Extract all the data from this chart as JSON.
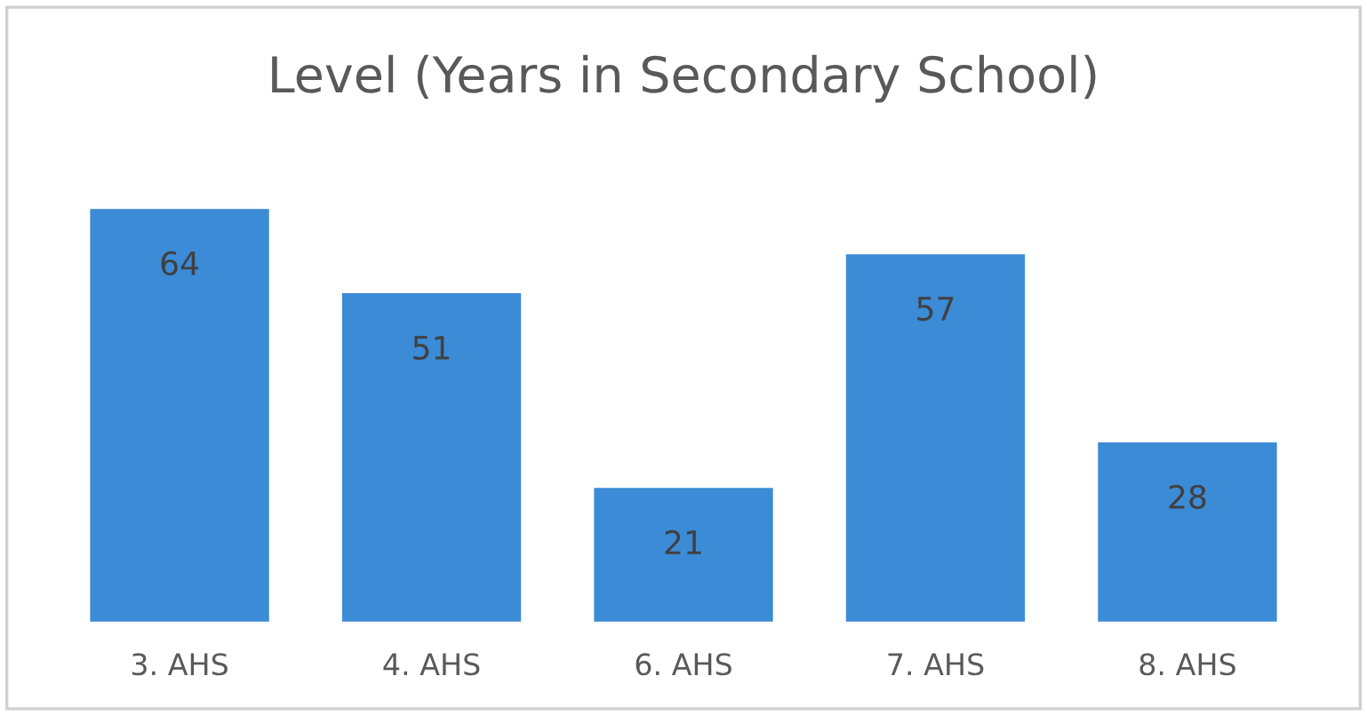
{
  "chart_data": {
    "type": "bar",
    "title": "Level (Years in Secondary School)",
    "categories": [
      "3. AHS",
      "4. AHS",
      "6. AHS",
      "7. AHS",
      "8. AHS"
    ],
    "values": [
      64,
      51,
      21,
      57,
      28
    ],
    "color": "#3c8bd6",
    "data_labels": true,
    "grid": false,
    "legend": false,
    "tick_labels": "x"
  }
}
